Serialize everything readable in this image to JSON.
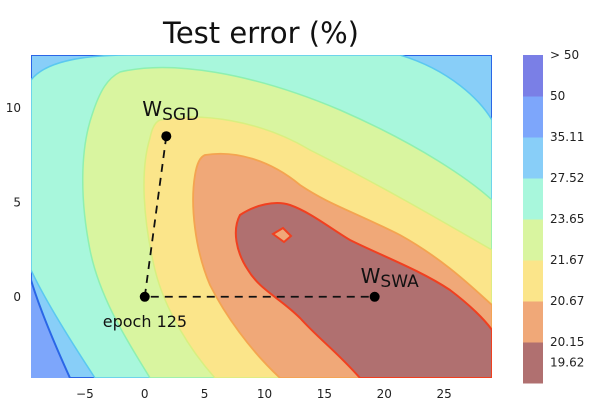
{
  "chart_data": {
    "type": "contour",
    "title": "Test error (%)",
    "xlabel": "",
    "ylabel": "",
    "xlim": [
      -9.5,
      29
    ],
    "ylim": [
      -4.3,
      12.8
    ],
    "x_ticks": [
      -5,
      0,
      5,
      10,
      15,
      20,
      25
    ],
    "y_ticks": [
      0,
      5,
      10
    ],
    "grid": false,
    "colorbar": {
      "levels": [
        "19.62",
        "20.15",
        "20.67",
        "21.67",
        "23.65",
        "27.52",
        "35.11",
        "50",
        "> 50"
      ],
      "colors": [
        "#b07070",
        "#f0a878",
        "#fbe58a",
        "#d9f5a0",
        "#a8f7dc",
        "#88cef8",
        "#7da6fb",
        "#7a7fe6"
      ],
      "placement": "right"
    },
    "points": [
      {
        "label": "W",
        "sub": "SGD",
        "x": 1.8,
        "y": 8.5
      },
      {
        "label": "epoch 125",
        "sub": "",
        "x": 0,
        "y": 0
      },
      {
        "label": "W",
        "sub": "SWA",
        "x": 19.2,
        "y": 0
      }
    ],
    "path": [
      [
        1.8,
        8.5
      ],
      [
        0,
        0
      ],
      [
        19.2,
        0
      ]
    ]
  }
}
